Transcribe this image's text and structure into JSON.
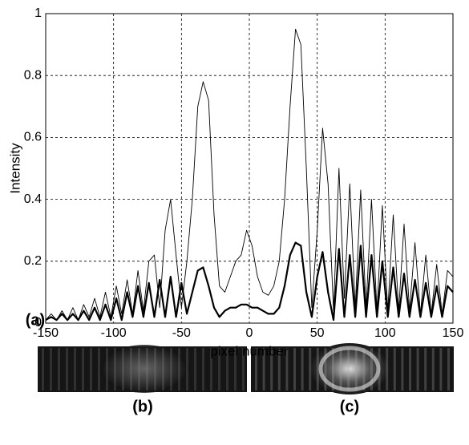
{
  "chart_data": {
    "type": "line",
    "x_label": "pixel number",
    "y_label": "Intensity",
    "annotations": [
      "(a)",
      "(b)",
      "(c)"
    ],
    "x": [
      -150,
      -146,
      -142,
      -138,
      -134,
      -130,
      -126,
      -122,
      -118,
      -114,
      -110,
      -106,
      -102,
      -98,
      -94,
      -90,
      -86,
      -82,
      -78,
      -74,
      -70,
      -66,
      -62,
      -58,
      -54,
      -50,
      -46,
      -42,
      -38,
      -34,
      -30,
      -26,
      -22,
      -18,
      -14,
      -10,
      -6,
      -2,
      2,
      6,
      10,
      14,
      18,
      22,
      26,
      30,
      34,
      38,
      42,
      46,
      50,
      54,
      58,
      62,
      66,
      70,
      74,
      78,
      82,
      86,
      90,
      94,
      98,
      102,
      106,
      110,
      114,
      118,
      122,
      126,
      130,
      134,
      138,
      142,
      146,
      150
    ],
    "series": [
      {
        "color": "#000000",
        "line_width": 0.9,
        "values": [
          0.01,
          0.03,
          0.01,
          0.04,
          0.01,
          0.05,
          0.01,
          0.06,
          0.02,
          0.08,
          0.02,
          0.1,
          0.02,
          0.12,
          0.03,
          0.14,
          0.03,
          0.17,
          0.04,
          0.2,
          0.22,
          0.05,
          0.3,
          0.4,
          0.22,
          0.05,
          0.2,
          0.4,
          0.7,
          0.78,
          0.72,
          0.35,
          0.12,
          0.1,
          0.15,
          0.2,
          0.22,
          0.3,
          0.25,
          0.15,
          0.1,
          0.09,
          0.12,
          0.2,
          0.4,
          0.7,
          0.95,
          0.9,
          0.5,
          0.05,
          0.3,
          0.63,
          0.45,
          0.04,
          0.5,
          0.08,
          0.45,
          0.05,
          0.43,
          0.05,
          0.4,
          0.04,
          0.38,
          0.04,
          0.35,
          0.04,
          0.32,
          0.04,
          0.26,
          0.03,
          0.22,
          0.03,
          0.19,
          0.03,
          0.17,
          0.15
        ]
      },
      {
        "color": "#000000",
        "line_width": 2.2,
        "values": [
          0.01,
          0.02,
          0.01,
          0.03,
          0.01,
          0.03,
          0.01,
          0.04,
          0.01,
          0.05,
          0.01,
          0.06,
          0.01,
          0.08,
          0.01,
          0.1,
          0.02,
          0.12,
          0.02,
          0.13,
          0.02,
          0.14,
          0.02,
          0.15,
          0.02,
          0.13,
          0.03,
          0.1,
          0.17,
          0.18,
          0.12,
          0.05,
          0.02,
          0.04,
          0.05,
          0.05,
          0.06,
          0.06,
          0.05,
          0.05,
          0.04,
          0.03,
          0.03,
          0.05,
          0.12,
          0.22,
          0.26,
          0.25,
          0.1,
          0.02,
          0.15,
          0.23,
          0.1,
          0.01,
          0.24,
          0.02,
          0.22,
          0.02,
          0.25,
          0.02,
          0.22,
          0.02,
          0.2,
          0.02,
          0.18,
          0.02,
          0.16,
          0.02,
          0.14,
          0.02,
          0.13,
          0.02,
          0.12,
          0.02,
          0.12,
          0.1
        ]
      }
    ],
    "xlim": [
      -150,
      150
    ],
    "xticks": [
      -150,
      -100,
      -50,
      0,
      50,
      100,
      150
    ],
    "ylim": [
      0,
      1
    ],
    "yticks": [
      0,
      0.2,
      0.4,
      0.6,
      0.8,
      1
    ],
    "grid": true
  }
}
